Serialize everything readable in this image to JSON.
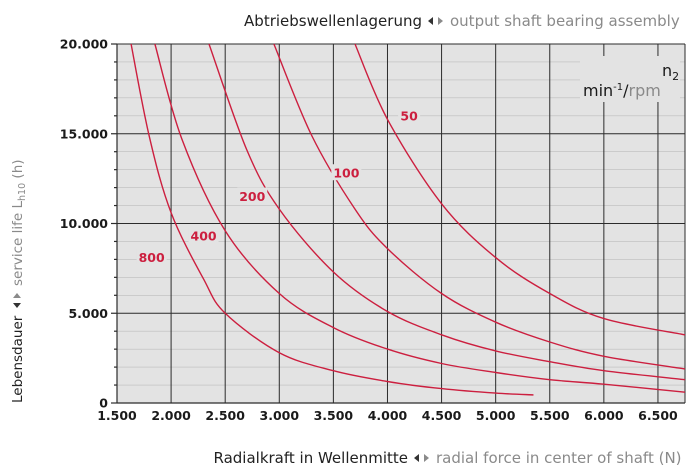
{
  "chart_data": {
    "type": "line",
    "title_de": "Abtriebswellenlagerung",
    "title_en": "output shaft bearing assembly",
    "xlabel_de": "Radialkraft in Wellenmitte",
    "xlabel_en": "radial force in center of shaft (N)",
    "ylabel_de": "Lebensdauer",
    "ylabel_en_prefix": "service life L",
    "ylabel_en_sub": "h10",
    "ylabel_en_suffix": " (h)",
    "legend_title": {
      "symbol": "n",
      "symbol_sub": "2",
      "unit_base": "min",
      "unit_sup": "-1",
      "separator": "/",
      "unit_alt": "rpm"
    },
    "xlim": [
      1500,
      6750
    ],
    "ylim": [
      0,
      20000
    ],
    "x_ticks": [
      1500,
      2000,
      2500,
      3000,
      3500,
      4000,
      4500,
      5000,
      5500,
      6000,
      6500
    ],
    "x_tick_labels": [
      "1.500",
      "2.000",
      "2.500",
      "3.000",
      "3.500",
      "4.000",
      "4.500",
      "5.000",
      "5.500",
      "6.000",
      "6.500"
    ],
    "y_ticks": [
      0,
      5000,
      10000,
      15000,
      20000
    ],
    "y_tick_labels": [
      "0",
      "5.000",
      "10.000",
      "15.000",
      "20.000"
    ],
    "grid": true,
    "series": [
      {
        "name": "50",
        "points": [
          [
            3700,
            20000
          ],
          [
            4000,
            15800
          ],
          [
            4500,
            11100
          ],
          [
            5000,
            8100
          ],
          [
            5500,
            6100
          ],
          [
            6000,
            4700
          ],
          [
            6750,
            3800
          ]
        ],
        "label_at": [
          4200,
          16000
        ]
      },
      {
        "name": "100",
        "points": [
          [
            2950,
            20000
          ],
          [
            3300,
            14900
          ],
          [
            3700,
            10800
          ],
          [
            4000,
            8600
          ],
          [
            4500,
            6100
          ],
          [
            5000,
            4500
          ],
          [
            5500,
            3400
          ],
          [
            6000,
            2600
          ],
          [
            6750,
            1900
          ]
        ],
        "label_at": [
          3620,
          12800
        ]
      },
      {
        "name": "200",
        "points": [
          [
            2350,
            20000
          ],
          [
            2700,
            14100
          ],
          [
            3000,
            10800
          ],
          [
            3500,
            7300
          ],
          [
            4000,
            5100
          ],
          [
            4500,
            3800
          ],
          [
            5000,
            2900
          ],
          [
            5500,
            2300
          ],
          [
            6000,
            1800
          ],
          [
            6750,
            1300
          ]
        ],
        "label_at": [
          2750,
          11500
        ]
      },
      {
        "name": "400",
        "points": [
          [
            1850,
            20000
          ],
          [
            2100,
            14700
          ],
          [
            2500,
            9600
          ],
          [
            3000,
            6100
          ],
          [
            3500,
            4200
          ],
          [
            4000,
            3000
          ],
          [
            4500,
            2200
          ],
          [
            5000,
            1700
          ],
          [
            5500,
            1300
          ],
          [
            6000,
            1050
          ],
          [
            6750,
            600
          ]
        ],
        "label_at": [
          2300,
          9300
        ]
      },
      {
        "name": "800",
        "points": [
          [
            1630,
            20000
          ],
          [
            1800,
            14800
          ],
          [
            2000,
            10600
          ],
          [
            2300,
            6900
          ],
          [
            2500,
            5000
          ],
          [
            3000,
            2800
          ],
          [
            3500,
            1800
          ],
          [
            4000,
            1200
          ],
          [
            4500,
            800
          ],
          [
            5000,
            550
          ],
          [
            5350,
            450
          ]
        ],
        "label_at": [
          1820,
          8100
        ]
      }
    ]
  }
}
